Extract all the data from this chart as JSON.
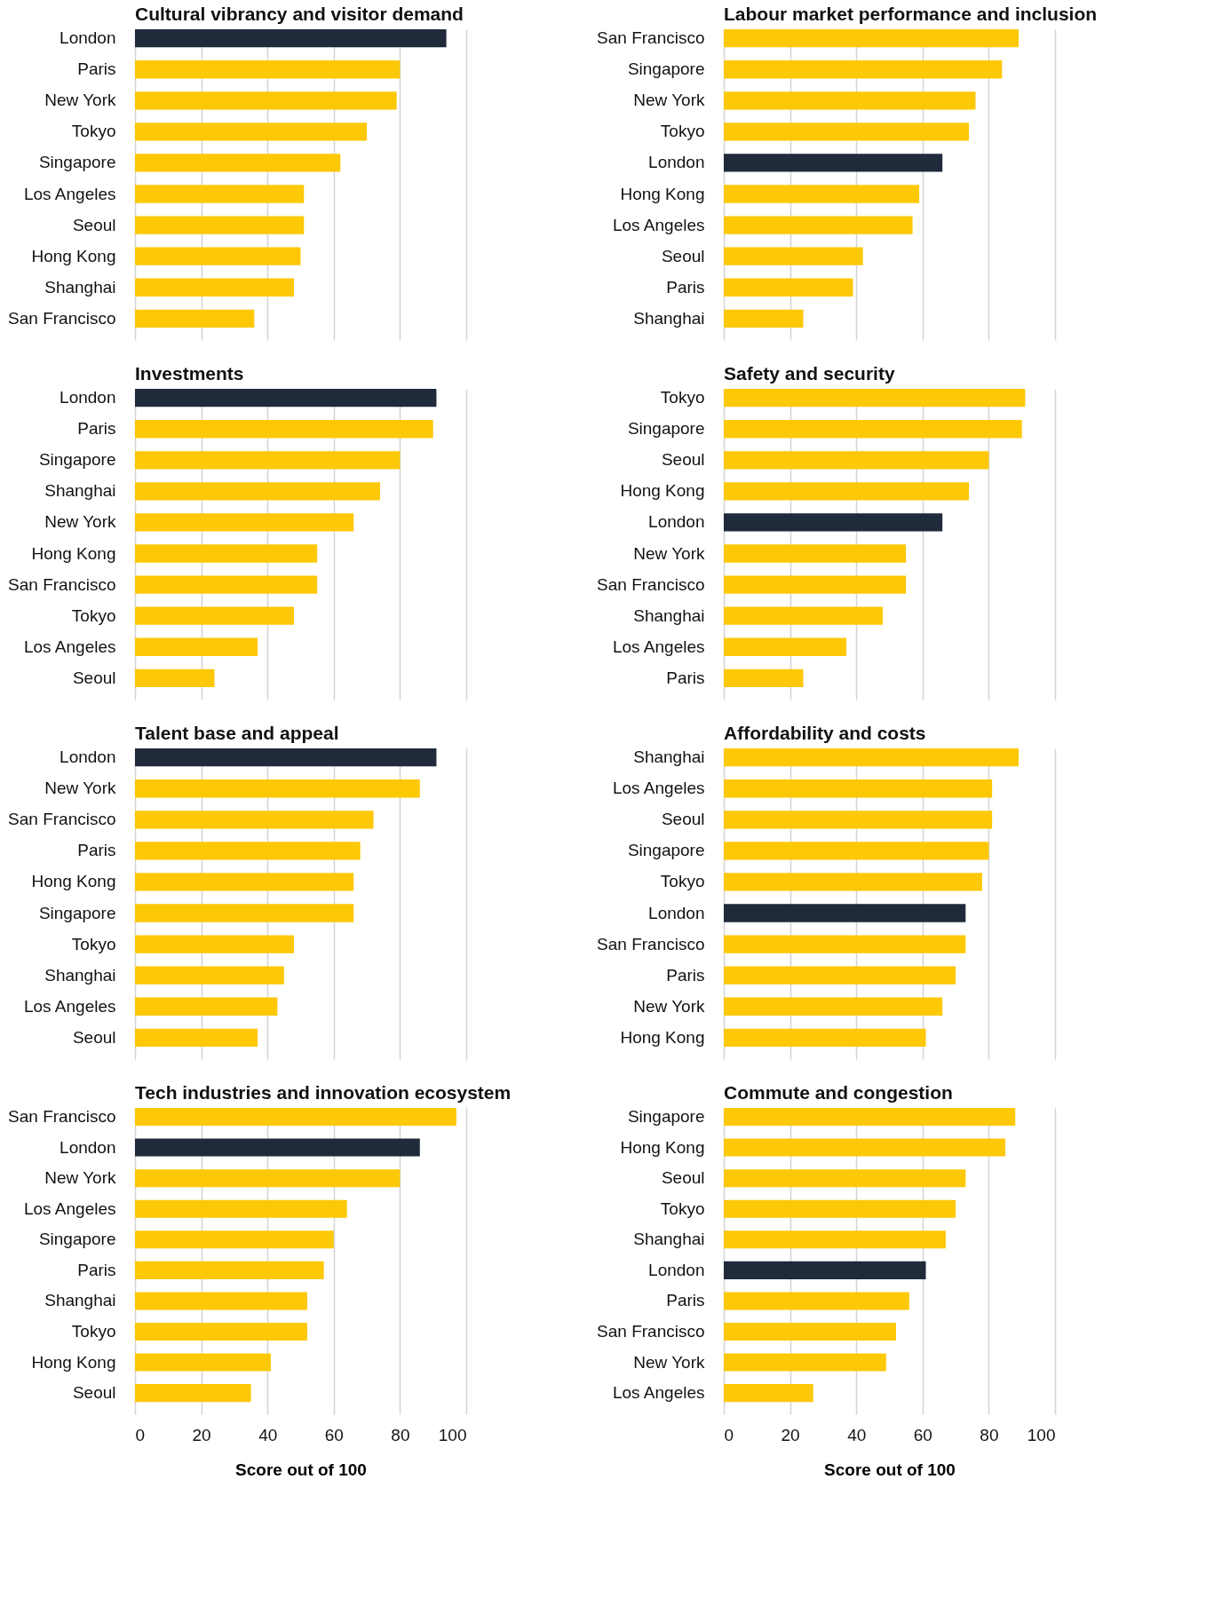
{
  "chart_data": [
    {
      "type": "bar",
      "orientation": "horizontal",
      "title": "Cultural vibrancy and visitor demand",
      "categories": [
        "London",
        "Paris",
        "New York",
        "Tokyo",
        "Singapore",
        "Los Angeles",
        "Seoul",
        "Hong Kong",
        "Shanghai",
        "San Francisco"
      ],
      "values": [
        94,
        80,
        79,
        70,
        62,
        51,
        51,
        50,
        48,
        36
      ],
      "colors": [
        "#1f2a3b",
        "#fdc806",
        "#fdc806",
        "#fdc806",
        "#fdc806",
        "#fdc806",
        "#fdc806",
        "#fdc806",
        "#fdc806",
        "#fdc806"
      ],
      "xlim": [
        0,
        100
      ],
      "xticks": [
        0,
        20,
        40,
        60,
        80,
        100
      ],
      "grid": "x",
      "tick_labels": "y"
    },
    {
      "type": "bar",
      "orientation": "horizontal",
      "title": "Labour market performance and inclusion",
      "categories": [
        "San Francisco",
        "Singapore",
        "New York",
        "Tokyo",
        "London",
        "Hong Kong",
        "Los Angeles",
        "Seoul",
        "Paris",
        "Shanghai"
      ],
      "values": [
        89,
        84,
        76,
        74,
        66,
        59,
        57,
        42,
        39,
        24
      ],
      "colors": [
        "#fdc806",
        "#fdc806",
        "#fdc806",
        "#fdc806",
        "#1f2a3b",
        "#fdc806",
        "#fdc806",
        "#fdc806",
        "#fdc806",
        "#fdc806"
      ],
      "xlim": [
        0,
        100
      ],
      "xticks": [
        0,
        20,
        40,
        60,
        80,
        100
      ],
      "grid": "x",
      "tick_labels": "y"
    },
    {
      "type": "bar",
      "orientation": "horizontal",
      "title": "Investments",
      "categories": [
        "London",
        "Paris",
        "Singapore",
        "Shanghai",
        "New York",
        "Hong Kong",
        "San Francisco",
        "Tokyo",
        "Los Angeles",
        "Seoul"
      ],
      "values": [
        91,
        90,
        80,
        74,
        66,
        55,
        55,
        48,
        37,
        24
      ],
      "colors": [
        "#1f2a3b",
        "#fdc806",
        "#fdc806",
        "#fdc806",
        "#fdc806",
        "#fdc806",
        "#fdc806",
        "#fdc806",
        "#fdc806",
        "#fdc806"
      ],
      "xlim": [
        0,
        100
      ],
      "xticks": [
        0,
        20,
        40,
        60,
        80,
        100
      ],
      "grid": "x",
      "tick_labels": "y"
    },
    {
      "type": "bar",
      "orientation": "horizontal",
      "title": "Safety and security",
      "categories": [
        "Tokyo",
        "Singapore",
        "Seoul",
        "Hong Kong",
        "London",
        "New York",
        "San Francisco",
        "Shanghai",
        "Los Angeles",
        "Paris"
      ],
      "values": [
        91,
        90,
        80,
        74,
        66,
        55,
        55,
        48,
        37,
        24
      ],
      "colors": [
        "#fdc806",
        "#fdc806",
        "#fdc806",
        "#fdc806",
        "#1f2a3b",
        "#fdc806",
        "#fdc806",
        "#fdc806",
        "#fdc806",
        "#fdc806"
      ],
      "xlim": [
        0,
        100
      ],
      "xticks": [
        0,
        20,
        40,
        60,
        80,
        100
      ],
      "grid": "x",
      "tick_labels": "y"
    },
    {
      "type": "bar",
      "orientation": "horizontal",
      "title": "Talent base and appeal",
      "categories": [
        "London",
        "New York",
        "San Francisco",
        "Paris",
        "Hong Kong",
        "Singapore",
        "Tokyo",
        "Shanghai",
        "Los Angeles",
        "Seoul"
      ],
      "values": [
        91,
        86,
        72,
        68,
        66,
        66,
        48,
        45,
        43,
        37
      ],
      "colors": [
        "#1f2a3b",
        "#fdc806",
        "#fdc806",
        "#fdc806",
        "#fdc806",
        "#fdc806",
        "#fdc806",
        "#fdc806",
        "#fdc806",
        "#fdc806"
      ],
      "xlim": [
        0,
        100
      ],
      "xticks": [
        0,
        20,
        40,
        60,
        80,
        100
      ],
      "grid": "x",
      "tick_labels": "y"
    },
    {
      "type": "bar",
      "orientation": "horizontal",
      "title": "Affordability and costs",
      "categories": [
        "Shanghai",
        "Los Angeles",
        "Seoul",
        "Singapore",
        "Tokyo",
        "London",
        "San Francisco",
        "Paris",
        "New York",
        "Hong Kong"
      ],
      "values": [
        89,
        81,
        81,
        80,
        78,
        73,
        73,
        70,
        66,
        61
      ],
      "colors": [
        "#fdc806",
        "#fdc806",
        "#fdc806",
        "#fdc806",
        "#fdc806",
        "#1f2a3b",
        "#fdc806",
        "#fdc806",
        "#fdc806",
        "#fdc806"
      ],
      "xlim": [
        0,
        100
      ],
      "xticks": [
        0,
        20,
        40,
        60,
        80,
        100
      ],
      "grid": "x",
      "tick_labels": "y"
    },
    {
      "type": "bar",
      "orientation": "horizontal",
      "title": "Tech industries and innovation ecosystem",
      "xlabel": "Score out of 100",
      "categories": [
        "San Francisco",
        "London",
        "New York",
        "Los Angeles",
        "Singapore",
        "Paris",
        "Shanghai",
        "Tokyo",
        "Hong Kong",
        "Seoul"
      ],
      "values": [
        97,
        86,
        80,
        64,
        60,
        57,
        52,
        52,
        41,
        35
      ],
      "colors": [
        "#fdc806",
        "#1f2a3b",
        "#fdc806",
        "#fdc806",
        "#fdc806",
        "#fdc806",
        "#fdc806",
        "#fdc806",
        "#fdc806",
        "#fdc806"
      ],
      "xlim": [
        0,
        100
      ],
      "xticks": [
        0,
        20,
        40,
        60,
        80,
        100
      ],
      "grid": "x"
    },
    {
      "type": "bar",
      "orientation": "horizontal",
      "title": "Commute and congestion",
      "xlabel": "Score out of 100",
      "categories": [
        "Singapore",
        "Hong Kong",
        "Seoul",
        "Tokyo",
        "Shanghai",
        "London",
        "Paris",
        "San Francisco",
        "New York",
        "Los Angeles"
      ],
      "values": [
        88,
        85,
        73,
        70,
        67,
        61,
        56,
        52,
        49,
        27
      ],
      "colors": [
        "#fdc806",
        "#fdc806",
        "#fdc806",
        "#fdc806",
        "#fdc806",
        "#1f2a3b",
        "#fdc806",
        "#fdc806",
        "#fdc806",
        "#fdc806"
      ],
      "xlim": [
        0,
        100
      ],
      "xticks": [
        0,
        20,
        40,
        60,
        80,
        100
      ],
      "grid": "x"
    }
  ]
}
